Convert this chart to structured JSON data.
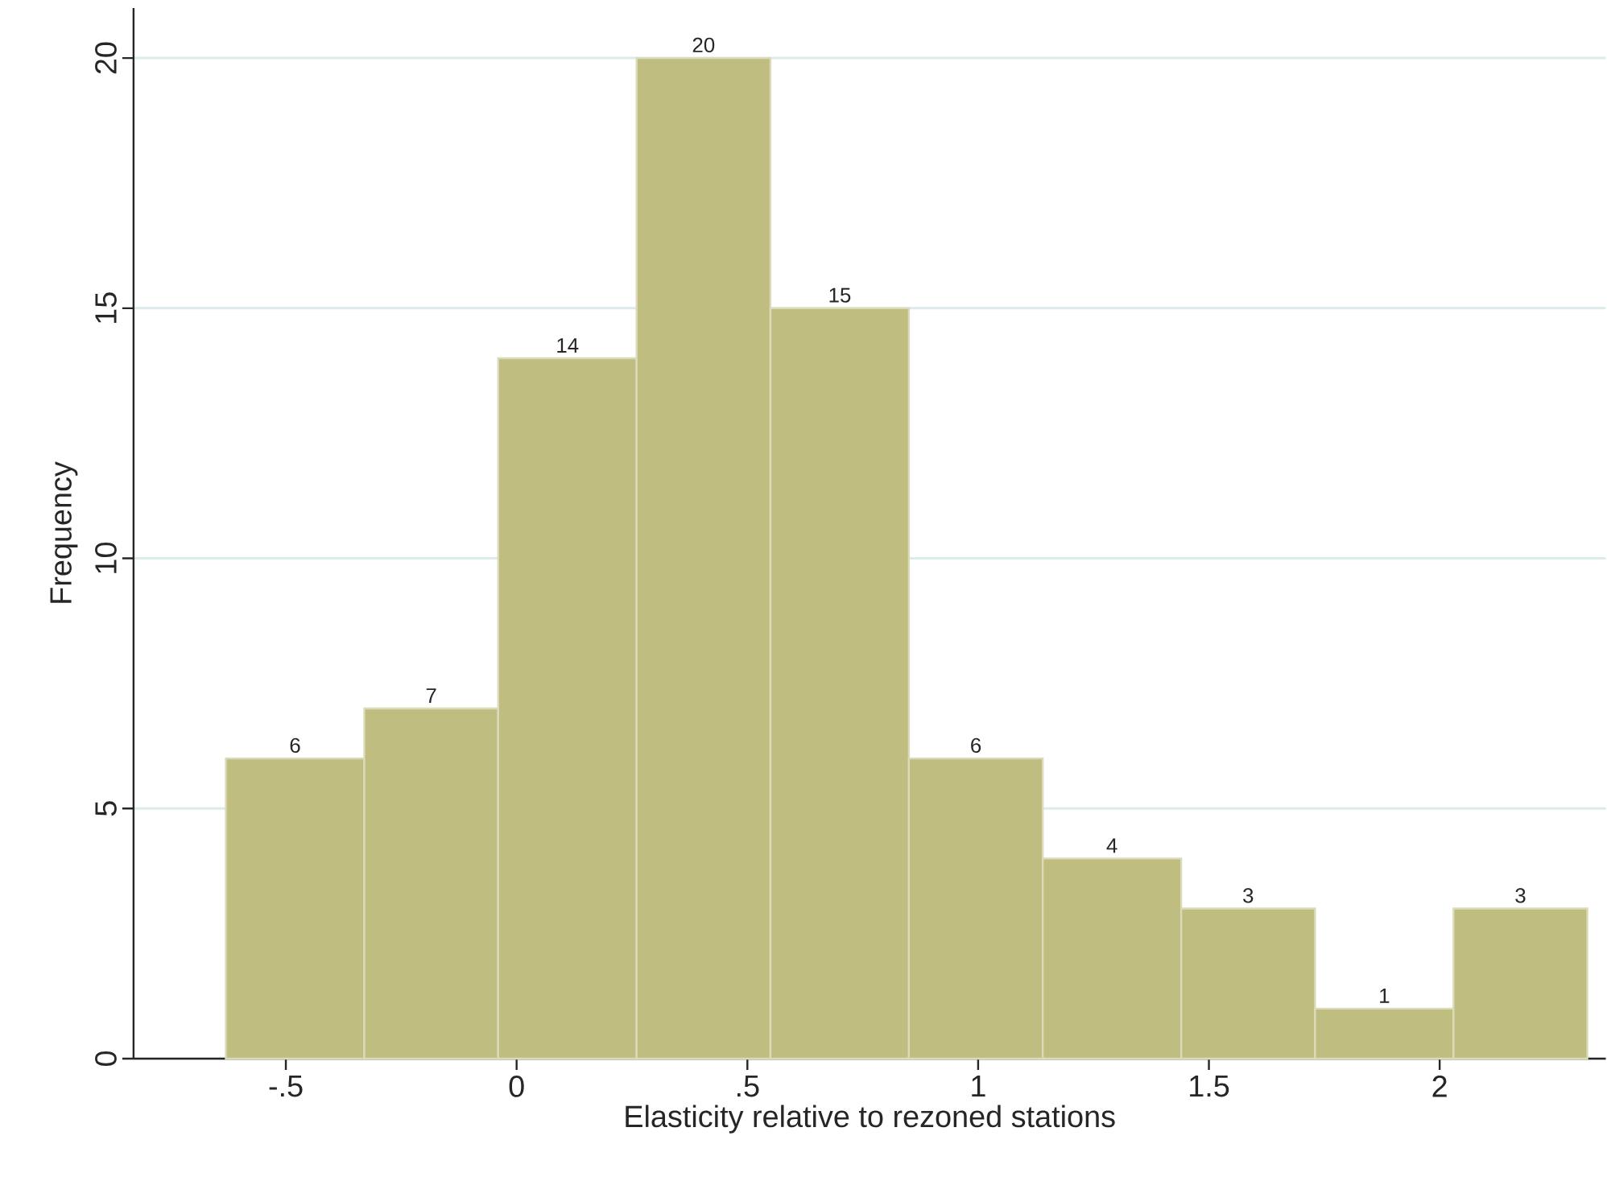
{
  "chart_data": {
    "type": "histogram",
    "xlabel": "Elasticity relative to rezoned stations",
    "ylabel": "Frequency",
    "bins": [
      -0.63,
      -0.33,
      -0.04,
      0.26,
      0.55,
      0.85,
      1.14,
      1.44,
      1.73,
      2.03,
      2.32
    ],
    "values": [
      6,
      7,
      14,
      20,
      15,
      6,
      4,
      3,
      1,
      3
    ],
    "color": "#bfbd80",
    "xlim": [
      -0.83,
      2.36
    ],
    "ylim": [
      0,
      21
    ],
    "xticks": [
      {
        "value": -0.5,
        "label": "-.5"
      },
      0,
      {
        "value": 0.5,
        "label": ".5"
      },
      1,
      1.5,
      2
    ],
    "yticks": [
      0,
      5,
      10,
      15,
      20
    ],
    "grid": "y",
    "data_labels": true
  }
}
